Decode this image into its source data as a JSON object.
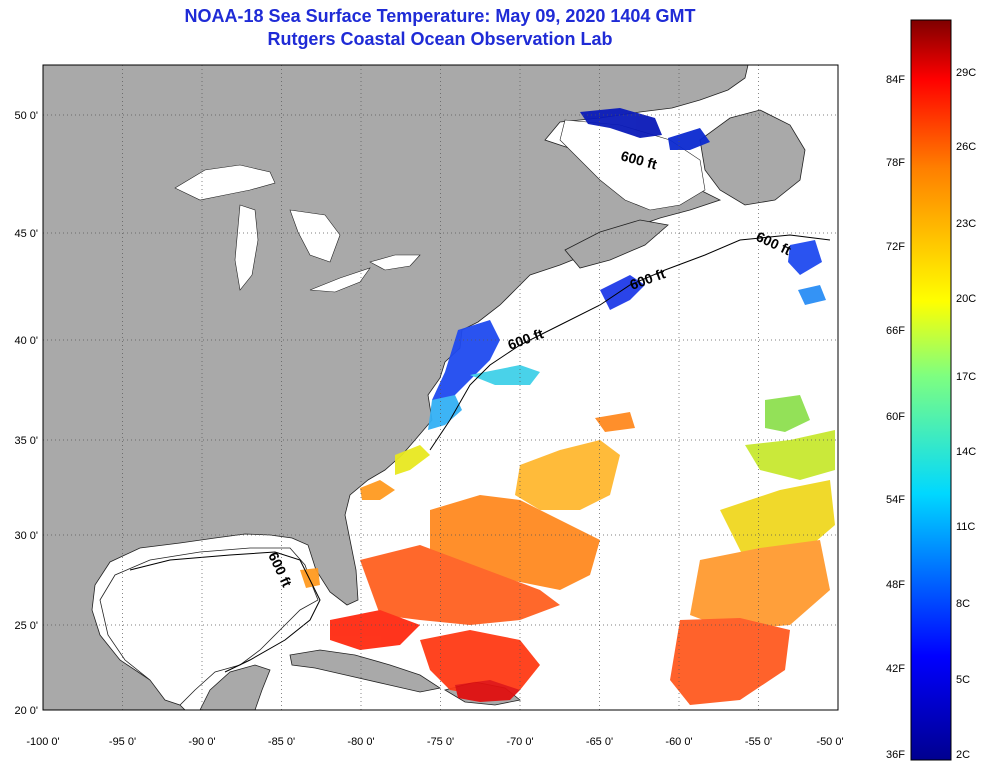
{
  "header": {
    "title": "NOAA-18 Sea Surface Temperature:  May 09, 2020 1404 GMT",
    "subtitle": "Rutgers Coastal Ocean Observation Lab"
  },
  "map": {
    "lon_ticks": [
      "-100 0'",
      "-95 0'",
      "-90 0'",
      "-85 0'",
      "-80 0'",
      "-75 0'",
      "-70 0'",
      "-65 0'",
      "-60 0'",
      "-55 0'",
      "-50 0'"
    ],
    "lat_ticks": [
      "50 0'",
      "45 0'",
      "40 0'",
      "35 0'",
      "30 0'",
      "25 0'",
      "20 0'"
    ],
    "contour_label": "600 ft",
    "colors": {
      "land": "#a9a9a9",
      "ocean": "#ffffff",
      "grid": "#555555"
    }
  },
  "colorbar": {
    "fahrenheit_labels": [
      "84F",
      "78F",
      "72F",
      "66F",
      "60F",
      "54F",
      "48F",
      "42F",
      "36F"
    ],
    "celsius_labels": [
      "29C",
      "26C",
      "23C",
      "20C",
      "17C",
      "14C",
      "11C",
      "8C",
      "5C",
      "2C"
    ]
  }
}
